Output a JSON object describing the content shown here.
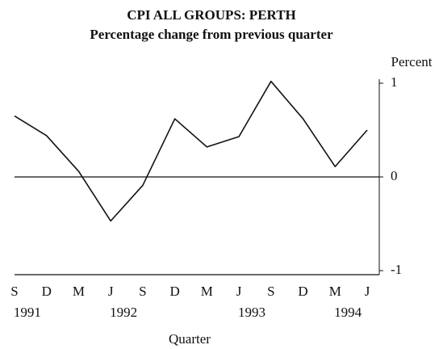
{
  "chart_data": {
    "type": "line",
    "title": "CPI ALL GROUPS: PERTH",
    "subtitle": "Percentage change from previous quarter",
    "y_label": "Percent",
    "x_label": "Quarter",
    "categories": [
      "S",
      "D",
      "M",
      "J",
      "S",
      "D",
      "M",
      "J",
      "S",
      "D",
      "M",
      "J"
    ],
    "year_labels": [
      "1991",
      null,
      null,
      "1992",
      null,
      null,
      null,
      "1993",
      null,
      null,
      "1994",
      null
    ],
    "values": [
      0.65,
      0.44,
      0.06,
      -0.47,
      -0.09,
      0.62,
      0.32,
      0.43,
      1.02,
      0.62,
      0.11,
      0.5
    ],
    "color": "#111111",
    "ylim": [
      -1,
      1
    ],
    "yticks": [
      1,
      0,
      -1
    ],
    "zero_line": true
  }
}
